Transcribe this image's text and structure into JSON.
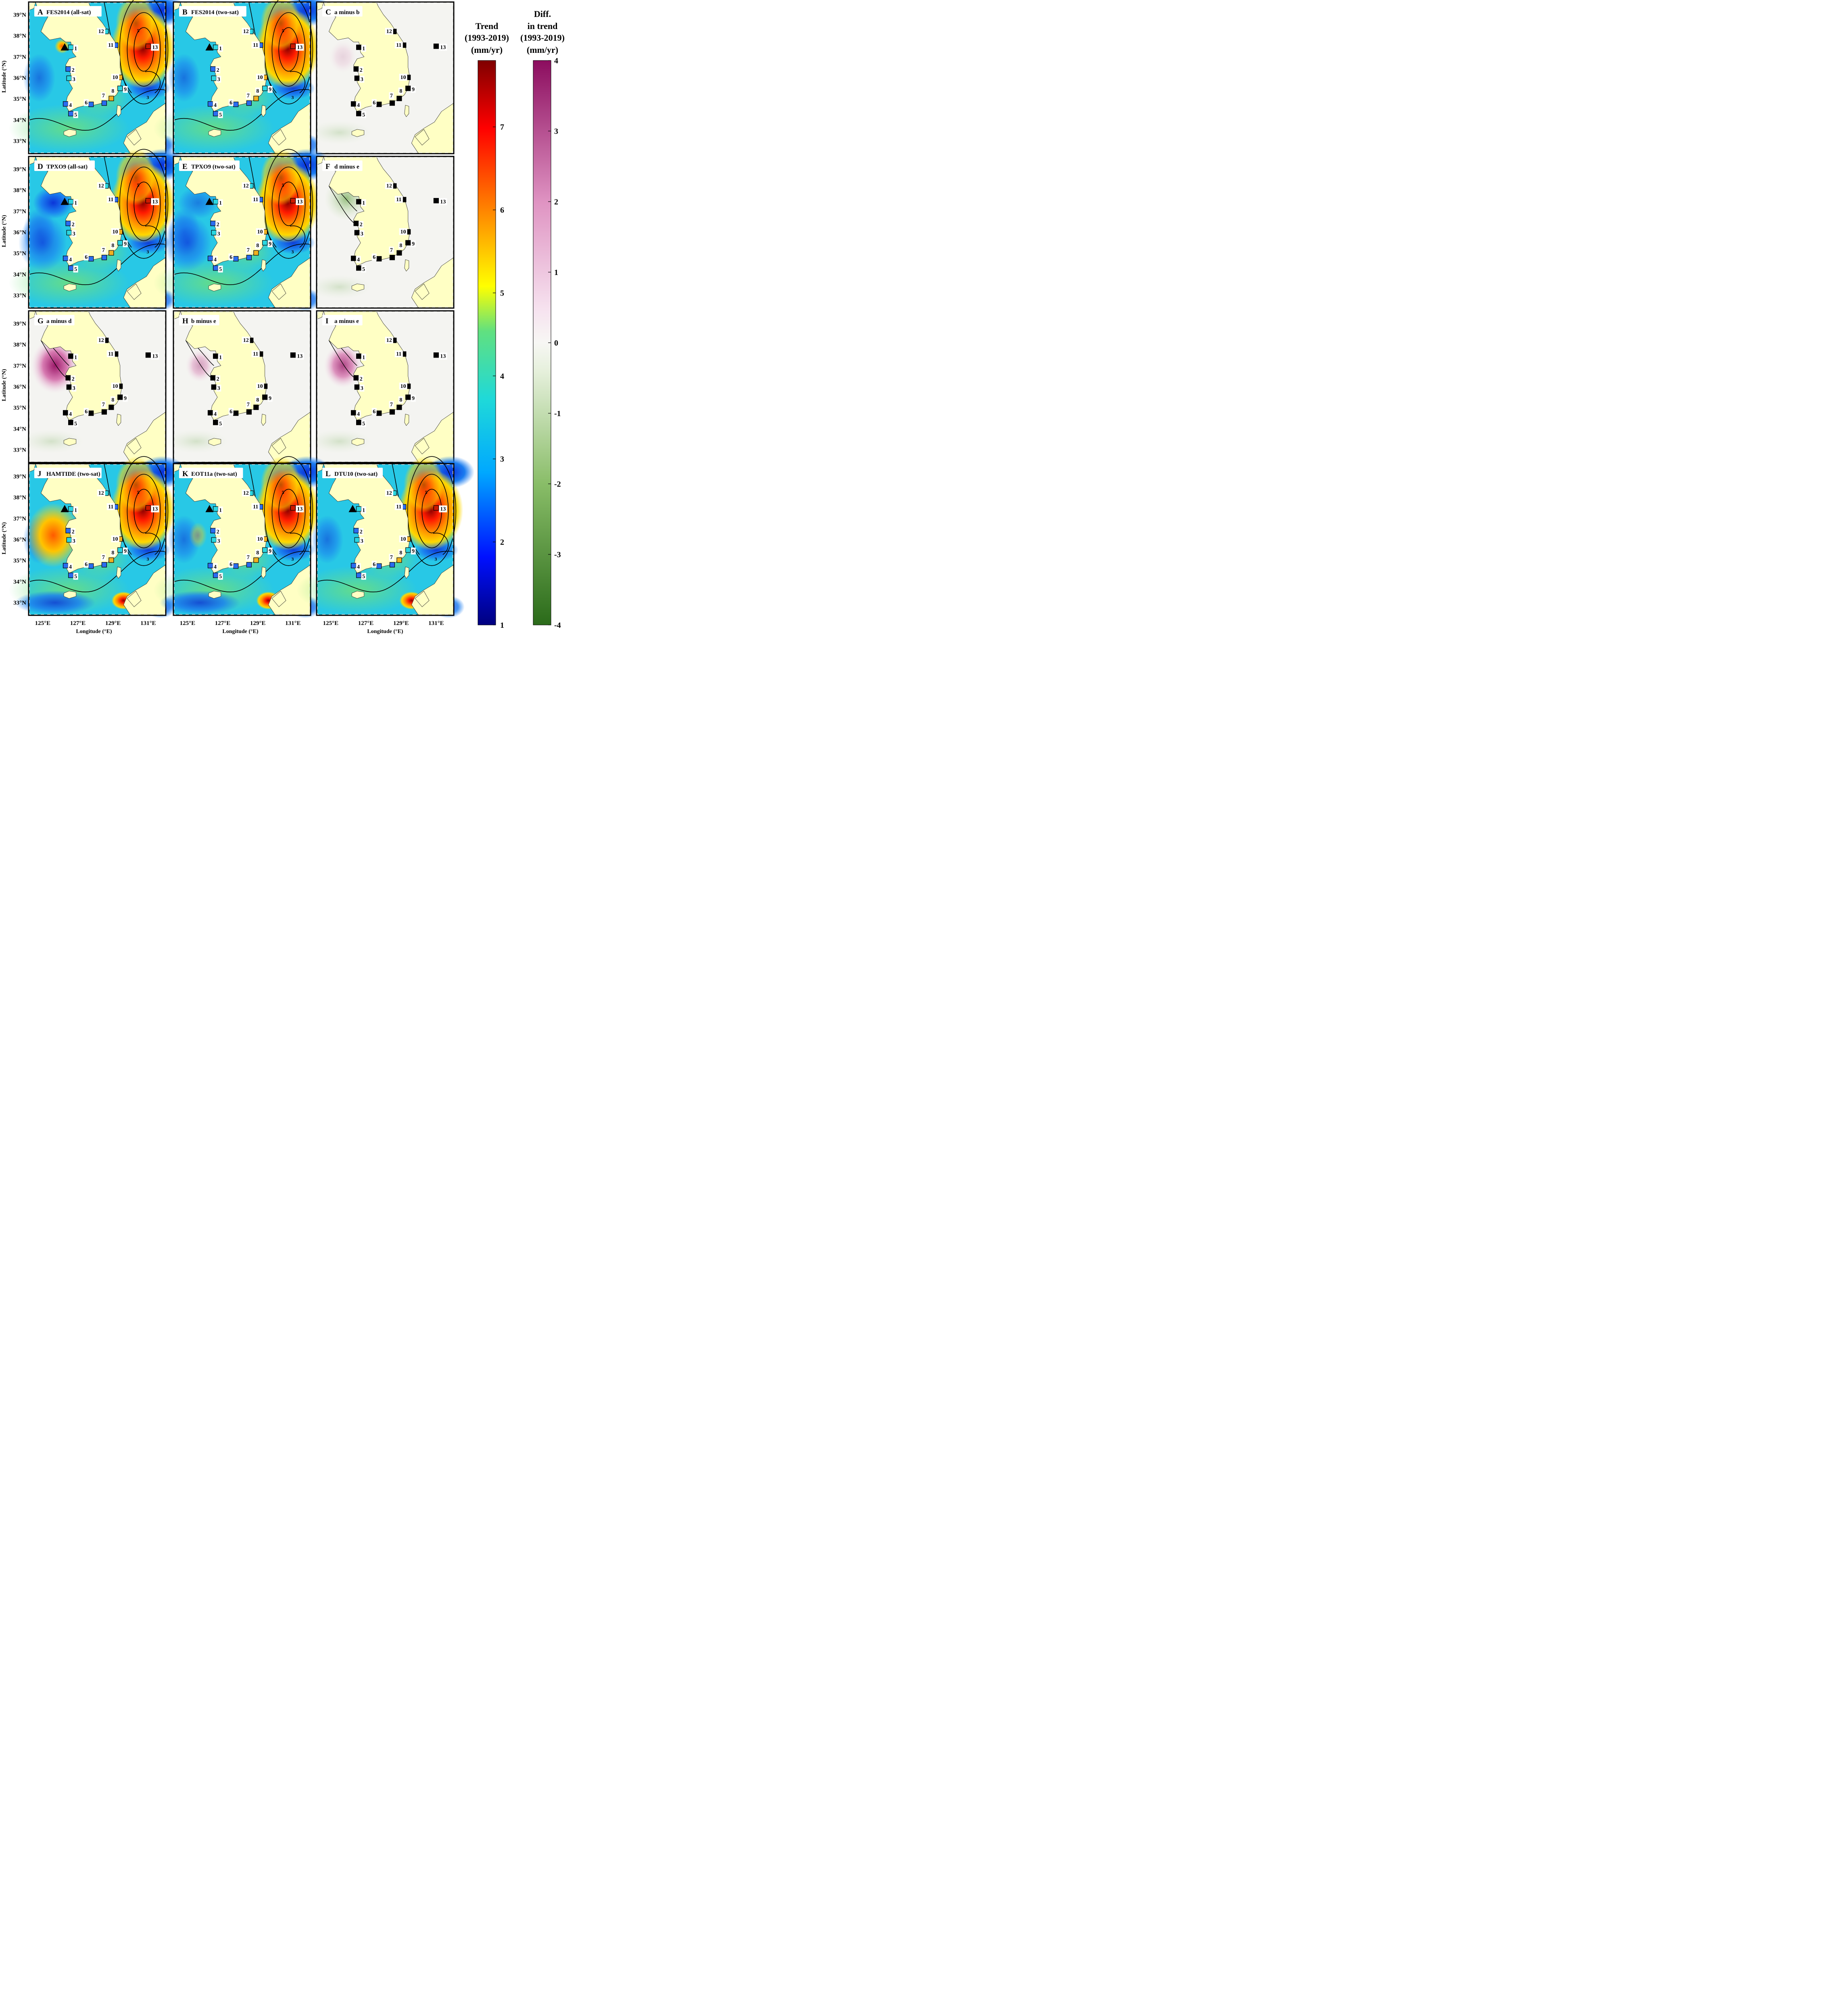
{
  "panels": [
    {
      "id": "A",
      "title": "FES2014 (all-sat)",
      "kind": "trend",
      "hot": 1.0,
      "west": 0.0
    },
    {
      "id": "B",
      "title": "FES2014 (two-sat)",
      "kind": "trend",
      "hot": 1.0,
      "west": 0.0
    },
    {
      "id": "C",
      "title": "a minus b",
      "kind": "diff",
      "westdiff": 0.15
    },
    {
      "id": "D",
      "title": "TPXO9 (all-sat)",
      "kind": "trend",
      "hot": 1.0,
      "west": -0.6
    },
    {
      "id": "E",
      "title": "TPXO9 (two-sat)",
      "kind": "trend",
      "hot": 1.0,
      "west": -0.3
    },
    {
      "id": "F",
      "title": "d minus e",
      "kind": "diff",
      "westdiff": -0.6
    },
    {
      "id": "G",
      "title": "a minus d",
      "kind": "diff",
      "westdiff": 1.0
    },
    {
      "id": "H",
      "title": "b minus e",
      "kind": "diff",
      "westdiff": 0.4
    },
    {
      "id": "I",
      "title": "a minus e",
      "kind": "diff",
      "westdiff": 0.8
    },
    {
      "id": "J",
      "title": "HAMTIDE (two-sat)",
      "kind": "trend",
      "hot": 1.0,
      "west": 1.2
    },
    {
      "id": "K",
      "title": "EOT11a (two-sat)",
      "kind": "trend",
      "hot": 1.0,
      "west": 0.4
    },
    {
      "id": "L",
      "title": "DTU10 (two-sat)",
      "kind": "trend",
      "hot": 1.0,
      "west": 0.0
    }
  ],
  "stations": [
    "1",
    "2",
    "3",
    "4",
    "5",
    "6",
    "7",
    "8",
    "9",
    "10",
    "11",
    "12",
    "13"
  ],
  "axes": {
    "lat_ticks": [
      "39°N",
      "38°N",
      "37°N",
      "36°N",
      "35°N",
      "34°N",
      "33°N"
    ],
    "lon_ticks": [
      "125°E",
      "127°E",
      "129°E",
      "131°E"
    ],
    "ylabel": "Latitude (°N)",
    "xlabel": "Longitude (°E)"
  },
  "colorbars": {
    "trend": {
      "title_lines": [
        "Trend",
        "(1993-2019)",
        "(mm/yr)"
      ],
      "ticks": [
        "1",
        "2",
        "3",
        "4",
        "5",
        "6",
        "7"
      ],
      "range": [
        1,
        7.8
      ]
    },
    "diff": {
      "title_lines": [
        "Diff.",
        "in trend",
        "(1993-2019)",
        "(mm/yr)"
      ],
      "ticks": [
        "4",
        "3",
        "2",
        "1",
        "0",
        "-1",
        "-2",
        "-3",
        "-4"
      ],
      "range": [
        -4,
        4
      ]
    }
  },
  "contour_labels": [
    "3",
    "4",
    "5",
    "6"
  ],
  "colors": {
    "land": "#ffffc4",
    "trend_ramp": [
      "#00007f",
      "#0040ff",
      "#00bfff",
      "#40e0d0",
      "#7fff7f",
      "#ffff00",
      "#ff7f00",
      "#ff0000",
      "#7f0000"
    ],
    "diff_ramp": [
      "#2e7d1e",
      "#a8d08d",
      "#f5f5f2",
      "#e8a5cf",
      "#a3166f"
    ]
  }
}
